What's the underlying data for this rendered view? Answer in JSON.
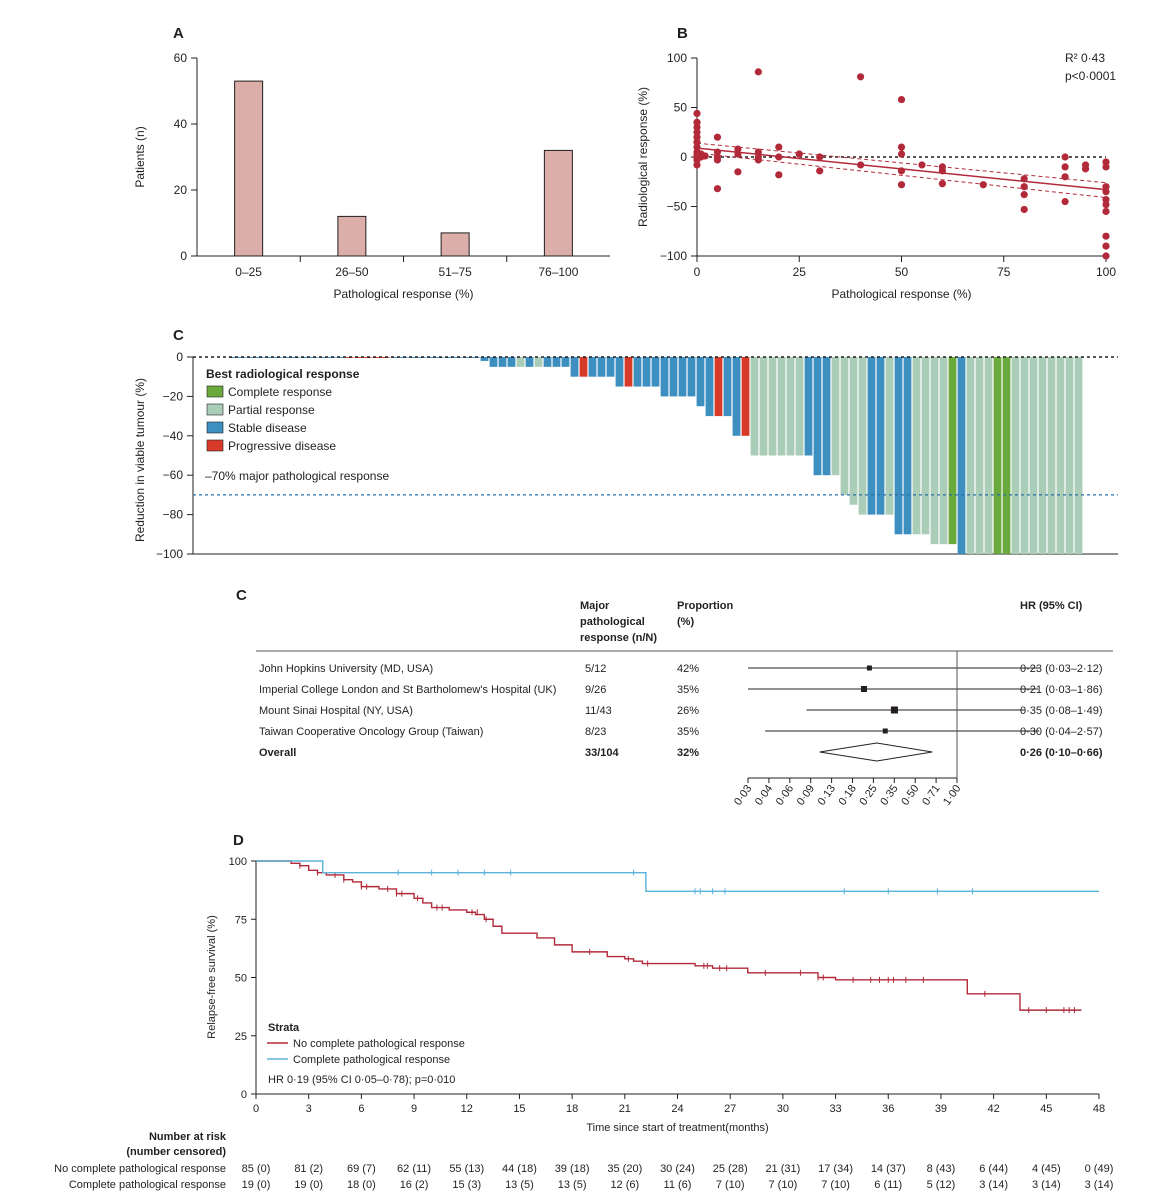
{
  "colors": {
    "bar_a": "#dcaea9",
    "scatter": "#b22a3a",
    "complete": "#6aa93c",
    "partial": "#a9cdb6",
    "stable": "#3d8fc0",
    "progressive": "#d83a2a",
    "blue_line": "#5ab2d8",
    "red_line": "#b22a3a"
  },
  "chart_data": [
    {
      "panel": "A",
      "type": "bar",
      "categories": [
        "0–25",
        "26–50",
        "51–75",
        "76–100"
      ],
      "values": [
        53,
        12,
        7,
        32
      ],
      "xlabel": "Pathological response (%)",
      "ylabel": "Patients (n)",
      "ylim": [
        0,
        60
      ],
      "yticks": [
        "0",
        "20",
        "40",
        "60"
      ]
    },
    {
      "panel": "B",
      "type": "scatter",
      "xlabel": "Pathological response (%)",
      "ylabel": "Radiological response (%)",
      "xlim": [
        0,
        100
      ],
      "ylim": [
        -100,
        100
      ],
      "xticks": [
        "0",
        "25",
        "50",
        "75",
        "100"
      ],
      "yticks": [
        "100",
        "50",
        "0",
        "−50",
        "−100"
      ],
      "annotation_r2": "R² 0·43",
      "annotation_p": "p<0·0001",
      "fit": {
        "x": [
          0,
          100
        ],
        "y": [
          9,
          -33
        ]
      },
      "points": [
        [
          0,
          44
        ],
        [
          0,
          35
        ],
        [
          0,
          30
        ],
        [
          0,
          25
        ],
        [
          0,
          20
        ],
        [
          0,
          15
        ],
        [
          0,
          10
        ],
        [
          0,
          5
        ],
        [
          0,
          2
        ],
        [
          0,
          0
        ],
        [
          0,
          -3
        ],
        [
          0,
          -8
        ],
        [
          1,
          3
        ],
        [
          1,
          0
        ],
        [
          2,
          1
        ],
        [
          5,
          20
        ],
        [
          5,
          5
        ],
        [
          5,
          0
        ],
        [
          5,
          -3
        ],
        [
          5,
          -32
        ],
        [
          10,
          8
        ],
        [
          10,
          3
        ],
        [
          10,
          -15
        ],
        [
          15,
          86
        ],
        [
          15,
          5
        ],
        [
          15,
          0
        ],
        [
          15,
          -3
        ],
        [
          20,
          10
        ],
        [
          20,
          0
        ],
        [
          20,
          -18
        ],
        [
          25,
          3
        ],
        [
          30,
          0
        ],
        [
          30,
          -14
        ],
        [
          40,
          81
        ],
        [
          40,
          -8
        ],
        [
          50,
          58
        ],
        [
          50,
          10
        ],
        [
          50,
          3
        ],
        [
          50,
          -14
        ],
        [
          50,
          -28
        ],
        [
          55,
          -8
        ],
        [
          60,
          -10
        ],
        [
          60,
          -14
        ],
        [
          60,
          -27
        ],
        [
          70,
          -28
        ],
        [
          80,
          -22
        ],
        [
          80,
          -30
        ],
        [
          80,
          -38
        ],
        [
          80,
          -53
        ],
        [
          90,
          0
        ],
        [
          90,
          -10
        ],
        [
          90,
          -20
        ],
        [
          90,
          -45
        ],
        [
          95,
          -8
        ],
        [
          95,
          -12
        ],
        [
          100,
          -5
        ],
        [
          100,
          -10
        ],
        [
          100,
          -30
        ],
        [
          100,
          -35
        ],
        [
          100,
          -43
        ],
        [
          100,
          -48
        ],
        [
          100,
          -55
        ],
        [
          100,
          -80
        ],
        [
          100,
          -90
        ],
        [
          100,
          -100
        ]
      ]
    },
    {
      "panel": "C",
      "type": "bar",
      "ylabel": "Reduction in viable tumour (%)",
      "ylim": [
        -100,
        0
      ],
      "yticks": [
        "0",
        "−20",
        "−40",
        "−60",
        "−80",
        "−100"
      ],
      "legend_title": "Best radiological response",
      "legend": [
        {
          "key": "complete",
          "label": "Complete response"
        },
        {
          "key": "partial",
          "label": "Partial response"
        },
        {
          "key": "stable",
          "label": "Stable disease"
        },
        {
          "key": "progressive",
          "label": "Progressive disease"
        }
      ],
      "threshold": -70,
      "threshold_label": "–70% major pathological response",
      "values": [
        -0.5,
        -0.5,
        -0.5,
        -0.5,
        -0.5,
        -0.5,
        -0.5,
        -0.5,
        -0.5,
        -0.5,
        -0.5,
        -0.5,
        -0.5,
        -0.5,
        -0.5,
        -0.5,
        -0.5,
        -0.5,
        -0.5,
        -0.5,
        -0.5,
        -0.5,
        -0.5,
        -0.5,
        -0.5,
        -0.5,
        -0.5,
        -0.5,
        -2,
        -5,
        -5,
        -5,
        -5,
        -5,
        -5,
        -5,
        -5,
        -5,
        -10,
        -10,
        -10,
        -10,
        -10,
        -15,
        -15,
        -15,
        -15,
        -15,
        -20,
        -20,
        -20,
        -20,
        -25,
        -30,
        -30,
        -30,
        -40,
        -40,
        -50,
        -50,
        -50,
        -50,
        -50,
        -50,
        -50,
        -60,
        -60,
        -60,
        -70,
        -75,
        -80,
        -80,
        -80,
        -80,
        -90,
        -90,
        -90,
        -90,
        -95,
        -95,
        -95,
        -100,
        -100,
        -100,
        -100,
        -100,
        -100,
        -100,
        -100,
        -100,
        -100,
        -100,
        -100,
        -100,
        -100
      ],
      "colors": [
        "stable",
        "stable",
        "stable",
        "stable",
        "stable",
        "stable",
        "stable",
        "stable",
        "stable",
        "stable",
        "stable",
        "stable",
        "stable",
        "progressive",
        "progressive",
        "progressive",
        "progressive",
        "progressive",
        "stable",
        "stable",
        "stable",
        "stable",
        "stable",
        "stable",
        "stable",
        "stable",
        "stable",
        "stable",
        "stable",
        "stable",
        "stable",
        "stable",
        "partial",
        "stable",
        "partial",
        "stable",
        "stable",
        "stable",
        "stable",
        "progressive",
        "stable",
        "stable",
        "stable",
        "stable",
        "progressive",
        "stable",
        "stable",
        "stable",
        "stable",
        "stable",
        "stable",
        "stable",
        "stable",
        "stable",
        "progressive",
        "stable",
        "stable",
        "progressive",
        "partial",
        "partial",
        "partial",
        "partial",
        "partial",
        "partial",
        "stable",
        "stable",
        "stable",
        "partial",
        "partial",
        "partial",
        "partial",
        "stable",
        "stable",
        "partial",
        "stable",
        "stable",
        "partial",
        "partial",
        "partial",
        "partial",
        "complete",
        "stable",
        "partial",
        "partial",
        "partial",
        "complete",
        "complete",
        "partial",
        "partial",
        "partial",
        "partial",
        "partial",
        "partial",
        "partial",
        "partial"
      ]
    },
    {
      "panel": "C",
      "type": "forest",
      "headers": {
        "mpr": [
          "Major",
          "pathological",
          "response (n/N)"
        ],
        "prop": [
          "Proportion",
          "(%)"
        ],
        "hr": "HR (95% CI)"
      },
      "rows": [
        {
          "study": "John Hopkins University (MD, USA)",
          "mpr": "5/12",
          "prop": "42%",
          "hr": 0.23,
          "lo": 0.03,
          "hi": 2.12,
          "hr_text": "0·23 (0·03–2·12)"
        },
        {
          "study": "Imperial College London and St Bartholomew's Hospital (UK)",
          "mpr": "9/26",
          "prop": "35%",
          "hr": 0.21,
          "lo": 0.03,
          "hi": 1.86,
          "hr_text": "0·21 (0·03–1·86)"
        },
        {
          "study": "Mount Sinai Hospital (NY, USA)",
          "mpr": "11/43",
          "prop": "26%",
          "hr": 0.35,
          "lo": 0.08,
          "hi": 1.49,
          "hr_text": "0·35 (0·08–1·49)"
        },
        {
          "study": "Taiwan Cooperative Oncology Group (Taiwan)",
          "mpr": "8/23",
          "prop": "35%",
          "hr": 0.3,
          "lo": 0.04,
          "hi": 2.57,
          "hr_text": "0·30 (0·04–2·57)"
        }
      ],
      "overall": {
        "study": "Overall",
        "mpr": "33/104",
        "prop": "32%",
        "hr": 0.26,
        "lo": 0.1,
        "hi": 0.66,
        "hr_text": "0·26 (0·10–0·66)"
      },
      "xticks": [
        "0·03",
        "0·04",
        "0·06",
        "0·09",
        "0·13",
        "0·18",
        "0·25",
        "0·35",
        "0·50",
        "0·71",
        "1·00"
      ]
    },
    {
      "panel": "D",
      "type": "line",
      "xlabel": "Time since start of treatment(months)",
      "ylabel": "Relapse-free survival (%)",
      "xlim": [
        0,
        48
      ],
      "ylim": [
        0,
        100
      ],
      "xticks": [
        "0",
        "3",
        "6",
        "9",
        "12",
        "15",
        "18",
        "21",
        "24",
        "27",
        "30",
        "33",
        "36",
        "39",
        "42",
        "45",
        "48"
      ],
      "yticks": [
        "0",
        "25",
        "50",
        "75",
        "100"
      ],
      "legend_title": "Strata",
      "series": [
        {
          "name": "No complete pathological response",
          "key": "red_line",
          "steps": [
            [
              0,
              100
            ],
            [
              2,
              99
            ],
            [
              2.5,
              98
            ],
            [
              3,
              96
            ],
            [
              3.5,
              95
            ],
            [
              4,
              94
            ],
            [
              5,
              92
            ],
            [
              5.5,
              91
            ],
            [
              6,
              89
            ],
            [
              7,
              88
            ],
            [
              8,
              86
            ],
            [
              9,
              84
            ],
            [
              9.5,
              82
            ],
            [
              10,
              80
            ],
            [
              11,
              79
            ],
            [
              12,
              78
            ],
            [
              12.5,
              77
            ],
            [
              13,
              75
            ],
            [
              13.5,
              72
            ],
            [
              14,
              69
            ],
            [
              16,
              67
            ],
            [
              17,
              64
            ],
            [
              18,
              61
            ],
            [
              20,
              59
            ],
            [
              21,
              58
            ],
            [
              21.5,
              57
            ],
            [
              22,
              56
            ],
            [
              25,
              55
            ],
            [
              26,
              54
            ],
            [
              28,
              52
            ],
            [
              32,
              50
            ],
            [
              33,
              49
            ],
            [
              40,
              49
            ],
            [
              40.5,
              43
            ],
            [
              43.5,
              36
            ],
            [
              47,
              36
            ]
          ],
          "censor": [
            [
              2.5,
              98
            ],
            [
              3.5,
              95
            ],
            [
              4.5,
              94
            ],
            [
              5,
              92
            ],
            [
              6,
              89
            ],
            [
              6.3,
              89
            ],
            [
              7.5,
              88
            ],
            [
              8,
              86
            ],
            [
              8.3,
              86
            ],
            [
              9.2,
              84
            ],
            [
              10.3,
              80
            ],
            [
              10.6,
              80
            ],
            [
              12.3,
              78
            ],
            [
              12.6,
              78
            ],
            [
              13.1,
              75
            ],
            [
              19,
              61
            ],
            [
              21.2,
              58
            ],
            [
              22.3,
              56
            ],
            [
              25.5,
              55
            ],
            [
              25.7,
              55
            ],
            [
              26.4,
              54
            ],
            [
              26.8,
              54
            ],
            [
              29,
              52
            ],
            [
              31,
              52
            ],
            [
              32,
              50
            ],
            [
              32.3,
              50
            ],
            [
              34,
              49
            ],
            [
              35,
              49
            ],
            [
              35.5,
              49
            ],
            [
              36,
              49
            ],
            [
              36.3,
              49
            ],
            [
              37,
              49
            ],
            [
              38,
              49
            ],
            [
              41.5,
              43
            ],
            [
              44,
              36
            ],
            [
              45,
              36
            ],
            [
              46,
              36
            ],
            [
              46.3,
              36
            ],
            [
              46.6,
              36
            ]
          ]
        },
        {
          "name": "Complete pathological response",
          "key": "blue_line",
          "steps": [
            [
              0,
              100
            ],
            [
              3.8,
              100
            ],
            [
              3.8,
              95
            ],
            [
              22.2,
              95
            ],
            [
              22.2,
              87
            ],
            [
              48,
              87
            ]
          ],
          "censor": [
            [
              8.1,
              95
            ],
            [
              10,
              95
            ],
            [
              11.5,
              95
            ],
            [
              13,
              95
            ],
            [
              14.5,
              95
            ],
            [
              21.5,
              95
            ],
            [
              25,
              87
            ],
            [
              25.3,
              87
            ],
            [
              26,
              87
            ],
            [
              26.7,
              87
            ],
            [
              33.5,
              87
            ],
            [
              36,
              87
            ],
            [
              38.8,
              87
            ],
            [
              40.8,
              87
            ]
          ]
        }
      ],
      "hr_text": "HR 0·19 (95% CI 0·05–0·78); p=0·010",
      "risk_title": [
        "Number at risk",
        "(number censored)"
      ],
      "risk_rows": [
        {
          "name": "No complete pathological response",
          "values": [
            "85 (0)",
            "81 (2)",
            "69 (7)",
            "62 (11)",
            "55 (13)",
            "44 (18)",
            "39 (18)",
            "35 (20)",
            "30 (24)",
            "25 (28)",
            "21 (31)",
            "17 (34)",
            "14 (37)",
            "8 (43)",
            "6 (44)",
            "4 (45)",
            "0 (49)"
          ]
        },
        {
          "name": "Complete pathological response",
          "values": [
            "19 (0)",
            "19 (0)",
            "18 (0)",
            "16 (2)",
            "15 (3)",
            "13 (5)",
            "13 (5)",
            "12 (6)",
            "11 (6)",
            "7 (10)",
            "7 (10)",
            "7 (10)",
            "6 (11)",
            "5 (12)",
            "3 (14)",
            "3 (14)",
            "3 (14)"
          ]
        }
      ]
    }
  ],
  "panels": {
    "a": "A",
    "b": "B",
    "c": "C",
    "c2": "C",
    "d": "D"
  }
}
